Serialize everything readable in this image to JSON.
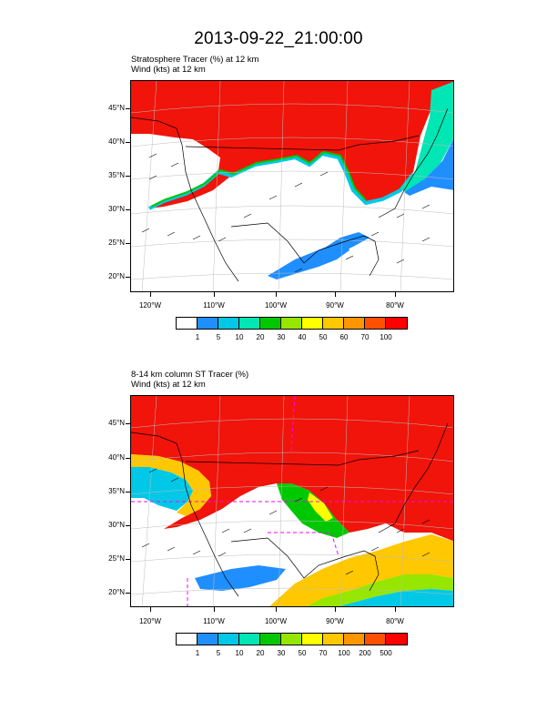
{
  "figure": {
    "title": "2013-09-22_21:00:00"
  },
  "panels": [
    {
      "title_line1": "Stratosphere Tracer   (%)    at   12 km",
      "title_line2": "Wind   (kts)    at   12 km",
      "lat_labels": [
        "45°N",
        "40°N",
        "35°N",
        "30°N",
        "25°N",
        "20°N"
      ],
      "lon_labels": [
        "120°W",
        "110°W",
        "100°W",
        "90°W",
        "80°W"
      ],
      "colorbar": {
        "colors": [
          "#ffffff",
          "#1f8fff",
          "#00c8e6",
          "#00e6b4",
          "#00c800",
          "#96e600",
          "#ffff00",
          "#ffc800",
          "#ff9600",
          "#ff5000",
          "#ff0000"
        ],
        "labels": [
          "1",
          "5",
          "10",
          "20",
          "30",
          "40",
          "50",
          "60",
          "70",
          "100"
        ]
      }
    },
    {
      "title_line1": "8-14 km column ST Tracer   (%)",
      "title_line2": "Wind   (kts)    at   12 km",
      "lat_labels": [
        "45°N",
        "40°N",
        "35°N",
        "30°N",
        "25°N",
        "20°N"
      ],
      "lon_labels": [
        "120°W",
        "110°W",
        "100°W",
        "90°W",
        "80°W"
      ],
      "colorbar": {
        "colors": [
          "#ffffff",
          "#1f8fff",
          "#00c8e6",
          "#00e6b4",
          "#00c800",
          "#96e600",
          "#ffff00",
          "#ffc800",
          "#ff9600",
          "#ff5000",
          "#ff0000"
        ],
        "labels": [
          "1",
          "5",
          "10",
          "20",
          "30",
          "50",
          "70",
          "100",
          "200",
          "500"
        ]
      }
    }
  ]
}
